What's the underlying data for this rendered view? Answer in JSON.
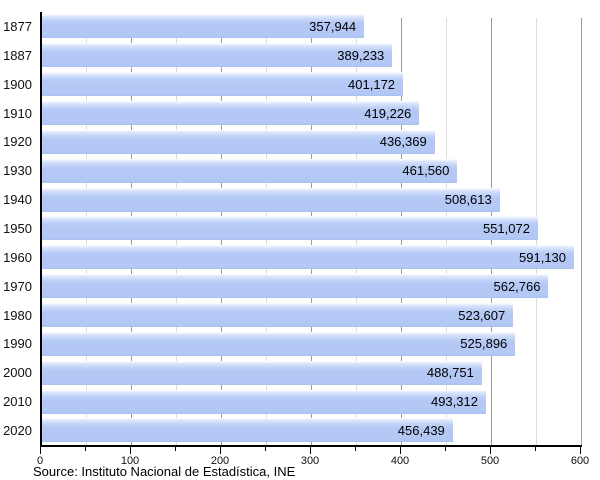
{
  "chart_data": {
    "type": "bar",
    "orientation": "horizontal",
    "title": "",
    "xlabel": "",
    "ylabel": "",
    "axis_unit": "thousands",
    "xlim": [
      0,
      600
    ],
    "x_ticks_major": [
      0,
      100,
      200,
      300,
      400,
      500,
      600
    ],
    "x_tick_labels": [
      "0",
      "100",
      "200",
      "300",
      "400",
      "500",
      "600"
    ],
    "x_ticks_minor": [
      50,
      150,
      250,
      350,
      450,
      550
    ],
    "grid": true,
    "legend_position": "none",
    "categories": [
      "1877",
      "1887",
      "1900",
      "1910",
      "1920",
      "1930",
      "1940",
      "1950",
      "1960",
      "1970",
      "1980",
      "1990",
      "2000",
      "2010",
      "2020"
    ],
    "values": [
      357944,
      389233,
      401172,
      419226,
      436369,
      461560,
      508613,
      551072,
      591130,
      562766,
      523607,
      525896,
      488751,
      493312,
      456439
    ],
    "value_labels": [
      "357,944",
      "389,233",
      "401,172",
      "419,226",
      "436,369",
      "461,560",
      "508,613",
      "551,072",
      "591,130",
      "562,766",
      "523,607",
      "525,896",
      "488,751",
      "493,312",
      "456,439"
    ],
    "colors": {
      "bar_fill": "#b3c8f5",
      "bar_fade_top": "#ffffff",
      "gridline_major": "#9b9b9b",
      "gridline_minor": "#dcdcdc",
      "axis": "#000000",
      "label_text": "#000000"
    }
  },
  "footer": {
    "source": "Source: Instituto Nacional de Estadística, INE"
  }
}
